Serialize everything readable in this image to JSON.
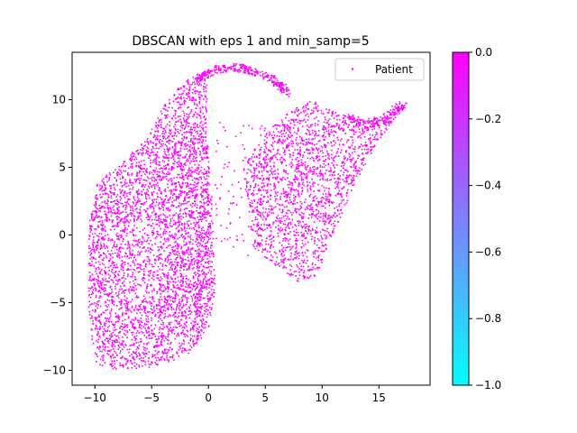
{
  "chart_data": {
    "type": "scatter",
    "title": "DBSCAN with eps 1 and min_samp=5",
    "xlabel": "",
    "ylabel": "",
    "xlim": [
      -12,
      19.5
    ],
    "ylim": [
      -11.1,
      13.5
    ],
    "x_ticks": [
      -10,
      -5,
      0,
      5,
      10,
      15
    ],
    "x_tick_labels": [
      "−10",
      "−5",
      "0",
      "5",
      "10",
      "15"
    ],
    "y_ticks": [
      -10,
      -5,
      0,
      5,
      10
    ],
    "y_tick_labels": [
      "−10",
      "−5",
      "0",
      "5",
      "10"
    ],
    "grid": false,
    "legend": {
      "position": "top-right",
      "entries": [
        "Patient"
      ]
    },
    "series": [
      {
        "name": "Patient",
        "color": "#ff00ff",
        "cluster_label": 0
      }
    ],
    "point_cloud": {
      "left_lobe_outline": [
        [
          -10.5,
          1.0
        ],
        [
          -9.8,
          3.8
        ],
        [
          -7.5,
          5.5
        ],
        [
          -5.5,
          7.0
        ],
        [
          -4.0,
          9.5
        ],
        [
          -2.0,
          11.5
        ],
        [
          0.0,
          12.0
        ],
        [
          -0.2,
          8.0
        ],
        [
          0.3,
          3.0
        ],
        [
          0.6,
          -4.0
        ],
        [
          0.0,
          -7.0
        ],
        [
          -2.0,
          -9.0
        ],
        [
          -5.0,
          -9.8
        ],
        [
          -8.0,
          -10.0
        ],
        [
          -10.0,
          -9.5
        ],
        [
          -10.6,
          -5.0
        ]
      ],
      "right_lobe_outline": [
        [
          3.0,
          5.0
        ],
        [
          5.0,
          7.5
        ],
        [
          7.0,
          9.0
        ],
        [
          9.0,
          10.0
        ],
        [
          12.0,
          9.0
        ],
        [
          15.0,
          8.5
        ],
        [
          17.3,
          9.6
        ],
        [
          15.0,
          7.0
        ],
        [
          13.0,
          4.0
        ],
        [
          11.0,
          0.0
        ],
        [
          9.5,
          -3.0
        ],
        [
          8.0,
          -3.5
        ],
        [
          5.5,
          -2.0
        ],
        [
          4.0,
          -1.0
        ],
        [
          3.5,
          2.0
        ]
      ],
      "top_arc": [
        [
          -1.0,
          11.5
        ],
        [
          0.5,
          12.2
        ],
        [
          2.5,
          12.4
        ],
        [
          4.5,
          12.0
        ],
        [
          6.0,
          11.3
        ],
        [
          7.0,
          10.5
        ]
      ],
      "right_tail": [
        [
          12.0,
          8.6
        ],
        [
          14.0,
          8.2
        ],
        [
          15.5,
          8.5
        ],
        [
          16.5,
          9.2
        ],
        [
          17.3,
          9.6
        ]
      ]
    },
    "colorbar": {
      "range": [
        -1.0,
        0.0
      ],
      "ticks": [
        0.0,
        -0.2,
        -0.4,
        -0.6,
        -0.8,
        -1.0
      ],
      "tick_labels": [
        "0.0",
        "−0.2",
        "−0.4",
        "−0.6",
        "−0.8",
        "−1.0"
      ],
      "colors": {
        "top": "#ff00ff",
        "bottom": "#00ffff"
      },
      "colormap": "cool"
    }
  }
}
